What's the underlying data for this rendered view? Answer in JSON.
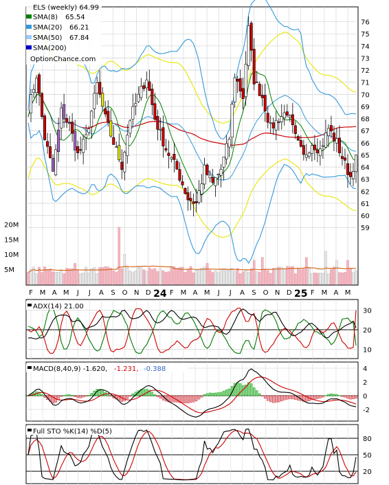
{
  "chart_data": [
    {
      "type": "candlestick",
      "panel": "price",
      "title": "ELS (weekly) 64.99",
      "legend": [
        {
          "name": "SMA(8)",
          "value": "65.54",
          "color": "#008000"
        },
        {
          "name": "SMA(20)",
          "value": "66.21",
          "color": "#3399dd"
        },
        {
          "name": "SMA(50)",
          "value": "67.84",
          "color": "#99ccff"
        },
        {
          "name": "SMA(200)",
          "value": "",
          "color": "#0000cc"
        }
      ],
      "watermark": "OptionChance.com",
      "x_tick_labels": [
        "F",
        "M",
        "A",
        "M",
        "J",
        "J",
        "A",
        "S",
        "O",
        "N",
        "D",
        "24",
        "F",
        "M",
        "A",
        "M",
        "J",
        "J",
        "A",
        "S",
        "O",
        "N",
        "D",
        "25",
        "F",
        "M",
        "A",
        "M"
      ],
      "y_ticks": [
        59,
        60,
        61,
        62,
        63,
        64,
        65,
        66,
        67,
        68,
        69,
        70,
        71,
        72,
        73,
        74,
        75,
        76
      ],
      "ylim": [
        58.5,
        77
      ],
      "colors": {
        "up": "#ffffff",
        "down": "#cc0000",
        "bb": "#3399dd",
        "envelope": "#e6e600",
        "sma50": "#cc0000"
      },
      "anchors": [
        [
          0,
          68.6
        ],
        [
          3,
          71.6
        ],
        [
          6,
          66.4
        ],
        [
          9,
          63.6
        ],
        [
          12,
          68.6
        ],
        [
          15,
          67.4
        ],
        [
          18,
          65.0
        ],
        [
          21,
          66.4
        ],
        [
          25,
          70.8
        ],
        [
          28,
          68.0
        ],
        [
          31,
          66.0
        ],
        [
          34,
          64.1
        ],
        [
          37,
          68.0
        ],
        [
          40,
          69.8
        ],
        [
          43,
          71.4
        ],
        [
          46,
          68.0
        ],
        [
          50,
          65.5
        ],
        [
          54,
          63.8
        ],
        [
          58,
          61.4
        ],
        [
          61,
          61.0
        ],
        [
          64,
          63.8
        ],
        [
          67,
          62.6
        ],
        [
          70,
          63.8
        ],
        [
          73,
          66.4
        ],
        [
          75,
          71.6
        ],
        [
          78,
          69.8
        ],
        [
          80,
          75.4
        ],
        [
          82,
          71.2
        ],
        [
          85,
          69.8
        ],
        [
          88,
          67.2
        ],
        [
          91,
          68.0
        ],
        [
          94,
          68.6
        ],
        [
          97,
          66.4
        ],
        [
          100,
          64.8
        ],
        [
          103,
          66.0
        ],
        [
          106,
          65.4
        ],
        [
          109,
          67.2
        ],
        [
          112,
          66.0
        ],
        [
          115,
          64.2
        ],
        [
          117,
          63.2
        ],
        [
          119,
          64.99
        ]
      ]
    },
    {
      "type": "bar",
      "panel": "volume",
      "y_tick_labels": [
        "5M",
        "10M",
        "15M",
        "20M"
      ],
      "y_ticks": [
        5,
        10,
        15,
        20
      ],
      "ylim": [
        0,
        21
      ],
      "spikes": [
        [
          0,
          4
        ],
        [
          17,
          7
        ],
        [
          33,
          19
        ],
        [
          35,
          10
        ],
        [
          41,
          6
        ],
        [
          44,
          5.5
        ],
        [
          59,
          6
        ],
        [
          65,
          7
        ],
        [
          82,
          8
        ],
        [
          85,
          9
        ],
        [
          94,
          6
        ],
        [
          96,
          6
        ],
        [
          101,
          9
        ],
        [
          108,
          11
        ],
        [
          112,
          8
        ],
        [
          116,
          8
        ]
      ],
      "base_volume": 4.5
    },
    {
      "type": "line",
      "panel": "adx",
      "title": "ADX(14) 21.00",
      "y_ticks": [
        10,
        20,
        30
      ],
      "ylim": [
        6,
        34
      ],
      "series": [
        {
          "name": "ADX(14)",
          "color": "#000000"
        },
        {
          "name": "+DI",
          "color": "#cc0000"
        },
        {
          "name": "-DI",
          "color": "#007700"
        }
      ],
      "last_values": {
        "adx": 21.0,
        "plus_di": 30.0,
        "minus_di": 12.0
      }
    },
    {
      "type": "line",
      "panel": "macd",
      "title": "MACD(8,40,9) -1.620,",
      "signal_label": "-1.231,",
      "hist_label": "-0.388",
      "y_ticks": [
        -2,
        0,
        2,
        4
      ],
      "ylim": [
        -3.5,
        4.5
      ],
      "colors": {
        "macd": "#000000",
        "signal": "#cc0000",
        "hist_pos": "#00aa00",
        "hist_neg": "#cc3333",
        "signal_text": "#cc0000",
        "hist_text": "#3366cc"
      }
    },
    {
      "type": "line",
      "panel": "stochastic",
      "title": "Full STO %K(14) %D(5)",
      "y_ticks": [
        20,
        50,
        80
      ],
      "ylim": [
        0,
        100
      ],
      "series": [
        {
          "name": "%K(14)",
          "color": "#000000"
        },
        {
          "name": "%D(5)",
          "color": "#cc0000"
        }
      ]
    }
  ]
}
